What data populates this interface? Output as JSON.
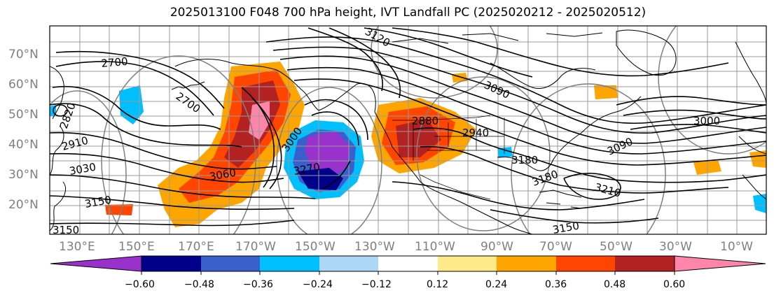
{
  "title": "2025013100 F048 700 hPa height, IVT Landfall PC (2025020212 - 2025020512)",
  "axes": {
    "lat_labels": [
      "70°N",
      "60°N",
      "50°N",
      "40°N",
      "30°N",
      "20°N"
    ],
    "lon_labels": [
      "130°E",
      "150°E",
      "170°E",
      "170°W",
      "150°W",
      "130°W",
      "110°W",
      "90°W",
      "70°W",
      "50°W",
      "30°W",
      "10°W"
    ]
  },
  "contour_labels": [
    "2700",
    "2700",
    "2820",
    "2910",
    "2940",
    "3030",
    "3060",
    "3090",
    "3150",
    "3150",
    "3180",
    "3180",
    "3210",
    "3000",
    "2880",
    "3000",
    "3270",
    "3120",
    "3090",
    "3150"
  ],
  "colorbar": {
    "ticks": [
      "−0.60",
      "−0.48",
      "−0.36",
      "−0.24",
      "−0.12",
      "0.12",
      "0.24",
      "0.36",
      "0.48",
      "0.60"
    ],
    "colors": [
      "#9932cc",
      "#00008b",
      "#3a5fcd",
      "#00bfff",
      "#add8f5",
      "#ffffff",
      "#ffea8a",
      "#ffa500",
      "#ff4500",
      "#b22222",
      "#ff86aa"
    ]
  },
  "colors": {
    "purple": "#9932cc",
    "navy": "#00008b",
    "blue": "#3a5fcd",
    "sky": "#00bfff",
    "lightblue": "#add8f5",
    "yellow": "#ffea8a",
    "orange": "#ffa500",
    "redorange": "#ff4500",
    "firebrick": "#b22222",
    "pink": "#ff86aa",
    "grid": "#888888",
    "contour": "#000000"
  }
}
